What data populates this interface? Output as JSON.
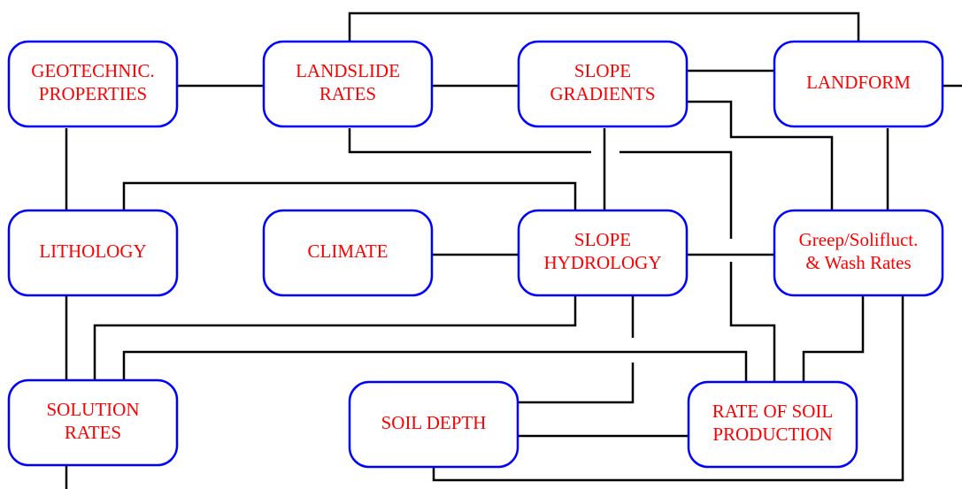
{
  "nodes": [
    {
      "lines": [
        "GEOTECHNIC.",
        "PROPERTIES"
      ]
    },
    {
      "lines": [
        "LANDSLIDE",
        "RATES"
      ]
    },
    {
      "lines": [
        "SLOPE",
        "GRADIENTS"
      ]
    },
    {
      "lines": [
        "LANDFORM"
      ]
    },
    {
      "lines": [
        "LITHOLOGY"
      ]
    },
    {
      "lines": [
        "CLIMATE"
      ]
    },
    {
      "lines": [
        "SLOPE",
        "HYDROLOGY"
      ]
    },
    {
      "lines": [
        "Greep/Solifluct.",
        "& Wash Rates"
      ]
    },
    {
      "lines": [
        "SOLUTION",
        "RATES"
      ]
    },
    {
      "lines": [
        "SOIL DEPTH"
      ]
    },
    {
      "lines": [
        "RATE OF SOIL",
        "PRODUCTION"
      ]
    }
  ]
}
